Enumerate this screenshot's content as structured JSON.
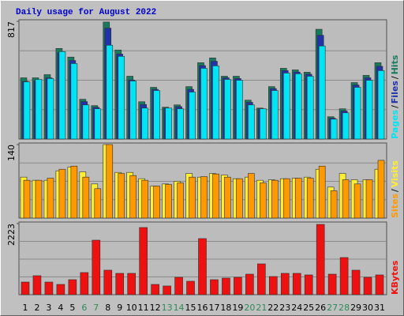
{
  "title": "Daily usage for August 2022",
  "chart_data": [
    {
      "type": "bar",
      "categories": [
        "1",
        "2",
        "3",
        "4",
        "5",
        "6",
        "7",
        "8",
        "9",
        "10",
        "11",
        "12",
        "13",
        "14",
        "15",
        "16",
        "17",
        "18",
        "19",
        "20",
        "21",
        "22",
        "23",
        "24",
        "25",
        "26",
        "27",
        "28",
        "29",
        "30",
        "31"
      ],
      "weekend": [
        "6",
        "7",
        "13",
        "14",
        "20",
        "21",
        "27",
        "28"
      ],
      "weekend_color": "#2e8b57",
      "legend_separator": "/",
      "series": [
        {
          "name": "Pages",
          "color": "#00e4f4",
          "values": [
            397,
            414,
            420,
            607,
            524,
            237,
            210,
            651,
            574,
            403,
            215,
            337,
            215,
            210,
            326,
            491,
            508,
            414,
            408,
            237,
            210,
            337,
            458,
            453,
            436,
            646,
            138,
            182,
            359,
            408,
            475
          ]
        },
        {
          "name": "Files",
          "color": "#2233aa",
          "values": [
            400,
            405,
            425,
            600,
            545,
            260,
            220,
            770,
            590,
            410,
            240,
            345,
            215,
            225,
            345,
            510,
            540,
            425,
            420,
            255,
            210,
            350,
            475,
            465,
            450,
            720,
            145,
            195,
            375,
            425,
            505
          ]
        },
        {
          "name": "Hits",
          "color": "#1a7a5e",
          "values": [
            425,
            425,
            447,
            629,
            569,
            276,
            232,
            812,
            618,
            436,
            259,
            359,
            221,
            237,
            364,
            530,
            563,
            436,
            436,
            270,
            215,
            364,
            491,
            480,
            464,
            762,
            155,
            210,
            392,
            442,
            530
          ]
        }
      ],
      "ylim": [
        0,
        817
      ],
      "yticks": [
        817
      ]
    },
    {
      "type": "bar",
      "legend_separator": "/",
      "series": [
        {
          "name": "Sites",
          "color": "#ff9900",
          "values": [
            72,
            72,
            76,
            93,
            99,
            78,
            56,
            140,
            85,
            81,
            72,
            61,
            64,
            67,
            78,
            79,
            84,
            78,
            75,
            85,
            67,
            72,
            75,
            76,
            76,
            99,
            52,
            73,
            65,
            73,
            110
          ]
        },
        {
          "name": "Visits",
          "color": "#ffee33",
          "values": [
            78,
            72,
            72,
            90,
            97,
            88,
            65,
            140,
            87,
            87,
            75,
            61,
            65,
            70,
            85,
            78,
            85,
            82,
            75,
            78,
            72,
            73,
            75,
            76,
            78,
            93,
            59,
            85,
            73,
            73,
            93
          ]
        }
      ],
      "ylim": [
        0,
        140
      ],
      "yticks": [
        140
      ]
    },
    {
      "type": "bar",
      "series": [
        {
          "name": "KBytes",
          "color": "#ee1111",
          "values": [
            395,
            593,
            395,
            321,
            469,
            692,
            1704,
            766,
            667,
            667,
            2100,
            321,
            272,
            543,
            420,
            1754,
            469,
            519,
            543,
            642,
            963,
            568,
            667,
            667,
            618,
            2198,
            642,
            1161,
            766,
            543,
            618
          ]
        }
      ],
      "ylim": [
        0,
        2223
      ],
      "yticks": [
        2223
      ]
    }
  ]
}
